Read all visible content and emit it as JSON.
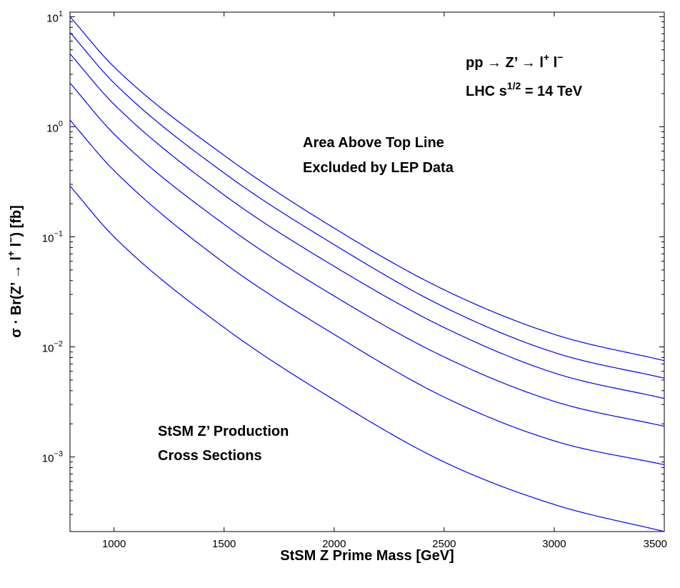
{
  "chart_data": {
    "type": "line",
    "xlabel": "StSM Z Prime Mass [GeV]",
    "ylabel": {
      "pre": "σ · Br(Z’ → l",
      "sup1": "+",
      "mid": " l",
      "sup2": "−",
      "post": ")  [fb]"
    },
    "xlim": [
      800,
      3500
    ],
    "ylim": [
      0.00021,
      11
    ],
    "yscale": "log",
    "grid": false,
    "x_ticks": [
      1000,
      1500,
      2000,
      2500,
      3000,
      3500
    ],
    "y_ticks": [
      {
        "value": 10,
        "base": "10",
        "exp": "1"
      },
      {
        "value": 1,
        "base": "10",
        "exp": "0"
      },
      {
        "value": 0.1,
        "base": "10",
        "exp": "−1"
      },
      {
        "value": 0.01,
        "base": "10",
        "exp": "−2"
      },
      {
        "value": 0.001,
        "base": "10",
        "exp": "−3"
      }
    ],
    "x": [
      800,
      1000,
      1500,
      2000,
      2500,
      3000,
      3500
    ],
    "series": [
      {
        "values": [
          10.0,
          3.5,
          0.55,
          0.12,
          0.033,
          0.013,
          0.0075
        ]
      },
      {
        "values": [
          7.2,
          2.5,
          0.38,
          0.085,
          0.023,
          0.0089,
          0.0052
        ]
      },
      {
        "values": [
          4.6,
          1.6,
          0.24,
          0.054,
          0.015,
          0.0058,
          0.0034
        ]
      },
      {
        "values": [
          2.5,
          0.86,
          0.13,
          0.029,
          0.0081,
          0.0032,
          0.0019
        ]
      },
      {
        "values": [
          1.15,
          0.4,
          0.058,
          0.013,
          0.0035,
          0.0014,
          0.00085
        ]
      },
      {
        "values": [
          0.29,
          0.1,
          0.015,
          0.0033,
          0.0009,
          0.00037,
          0.00021
        ]
      }
    ],
    "annotations": {
      "process": {
        "pre": "pp → Z’ →  l",
        "sup1": "+",
        "mid": " l",
        "sup2": "−"
      },
      "energy": {
        "pre": "LHC  s",
        "sup": "1/2",
        "post": " = 14 TeV"
      },
      "excluded_line1": "Area Above Top Line",
      "excluded_line2": "Excluded by LEP Data",
      "production_line1": "StSM Z’ Production",
      "production_line2": "Cross Sections"
    },
    "colors": {
      "series": "#0000ff",
      "axes": "#000000",
      "background": "#ffffff"
    }
  }
}
